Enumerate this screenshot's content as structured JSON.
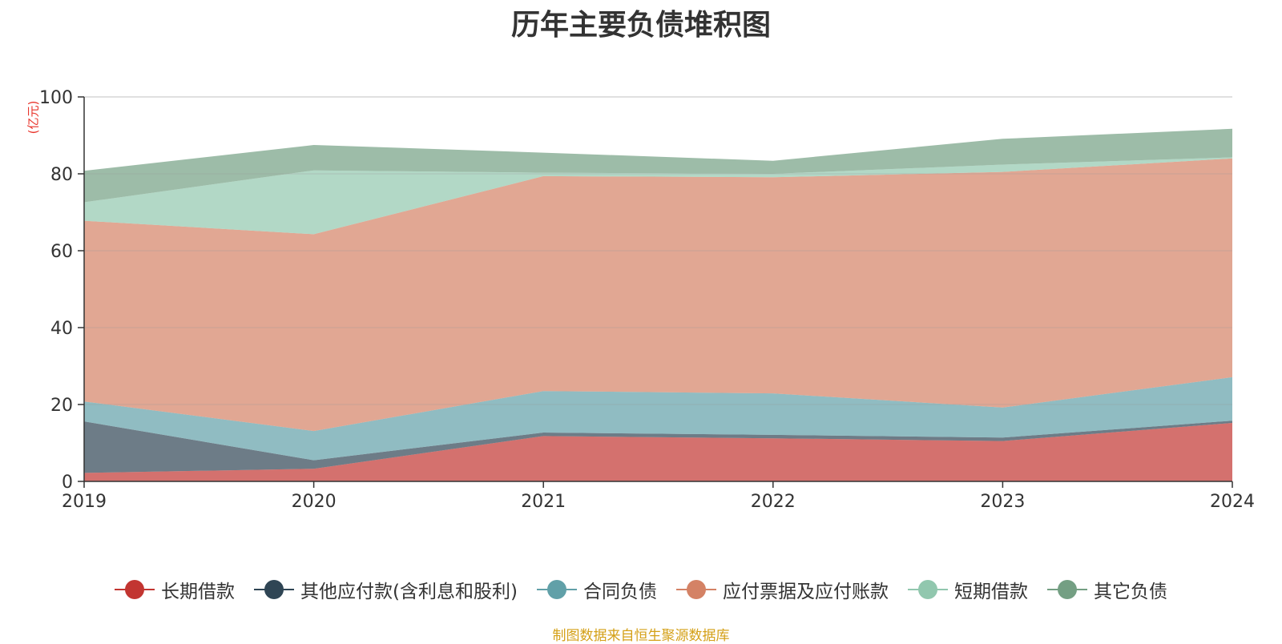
{
  "chart_data": {
    "type": "area",
    "stacked": true,
    "title": "历年主要负债堆积图",
    "ylabel": "(亿元)",
    "xlabel": "",
    "ylim": [
      0,
      100
    ],
    "yticks": [
      0,
      20,
      40,
      60,
      80,
      100
    ],
    "categories": [
      "2019",
      "2020",
      "2021",
      "2022",
      "2023",
      "2024"
    ],
    "series": [
      {
        "name": "长期借款",
        "color": "#c23531",
        "values": [
          2.2,
          3.3,
          11.8,
          11.2,
          10.5,
          15.2
        ]
      },
      {
        "name": "其他应付款(含利息和股利)",
        "color": "#2f4554",
        "values": [
          13.4,
          2.2,
          0.9,
          0.9,
          0.9,
          0.6
        ]
      },
      {
        "name": "合同负债",
        "color": "#61a0a8",
        "values": [
          5.2,
          7.6,
          10.8,
          10.8,
          7.8,
          11.3
        ]
      },
      {
        "name": "应付票据及应付账款",
        "color": "#d48265",
        "values": [
          47.0,
          51.2,
          55.9,
          56.2,
          61.3,
          56.9
        ]
      },
      {
        "name": "短期借款",
        "color": "#91c7ae",
        "values": [
          4.8,
          16.6,
          0.9,
          0.9,
          1.9,
          0.3
        ]
      },
      {
        "name": "其它负债",
        "color": "#749f83",
        "values": [
          8.2,
          6.6,
          5.2,
          3.4,
          6.7,
          7.4
        ]
      }
    ],
    "legend_position": "bottom",
    "grid": true
  },
  "footer": {
    "source": "制图数据来自恒生聚源数据库"
  }
}
